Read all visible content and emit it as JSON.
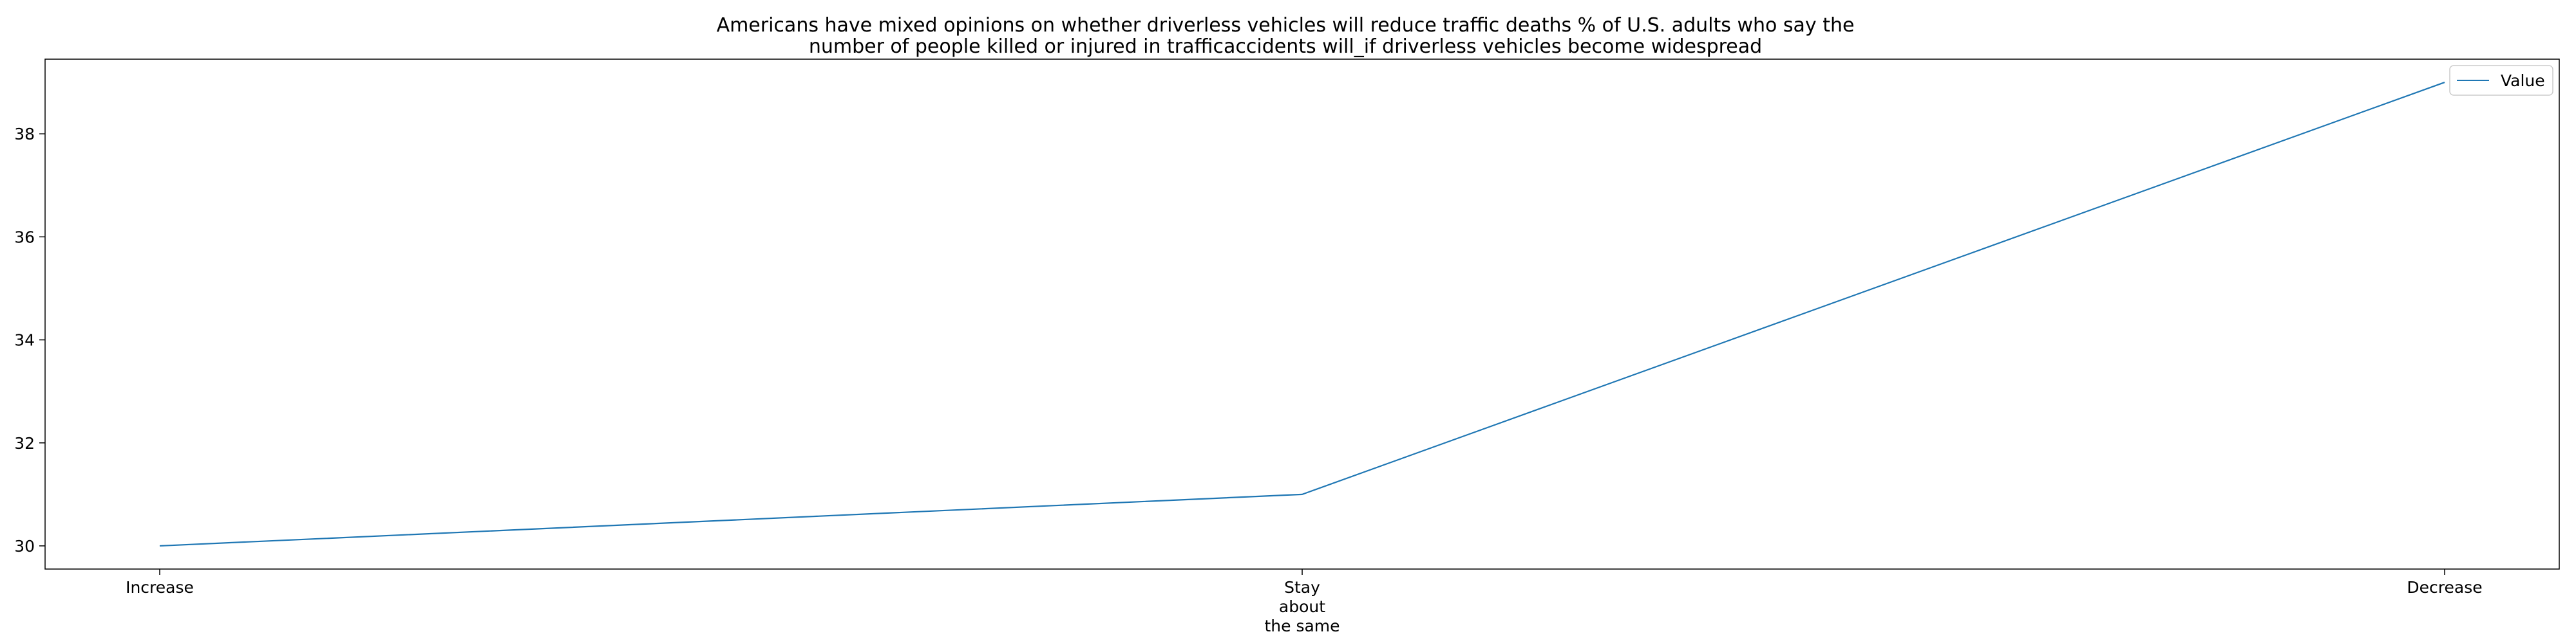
{
  "chart_data": {
    "type": "line",
    "title": "Americans have mixed opinions on whether driverless vehicles will reduce traffic deaths % of U.S. adults who say the number of people killed or injured in trafficaccidents will_if driverless vehicles become widespread",
    "title_lines": [
      "Americans have mixed opinions on whether driverless vehicles will reduce traffic deaths % of U.S. adults who say the",
      "number of people killed or injured in trafficaccidents will_if driverless vehicles become widespread"
    ],
    "categories": [
      "Increase",
      "Stay about the same",
      "Decrease"
    ],
    "category_label_lines": [
      [
        "Increase"
      ],
      [
        "Stay",
        "about",
        "the same"
      ],
      [
        "Decrease"
      ]
    ],
    "series": [
      {
        "name": "Value",
        "values": [
          30,
          31,
          39
        ],
        "color": "#1f77b4"
      }
    ],
    "xlabel": "",
    "ylabel": "",
    "ylim": [
      29.55,
      39.45
    ],
    "yticks": [
      30,
      32,
      34,
      36,
      38
    ],
    "grid": false,
    "legend_position": "top-right"
  }
}
